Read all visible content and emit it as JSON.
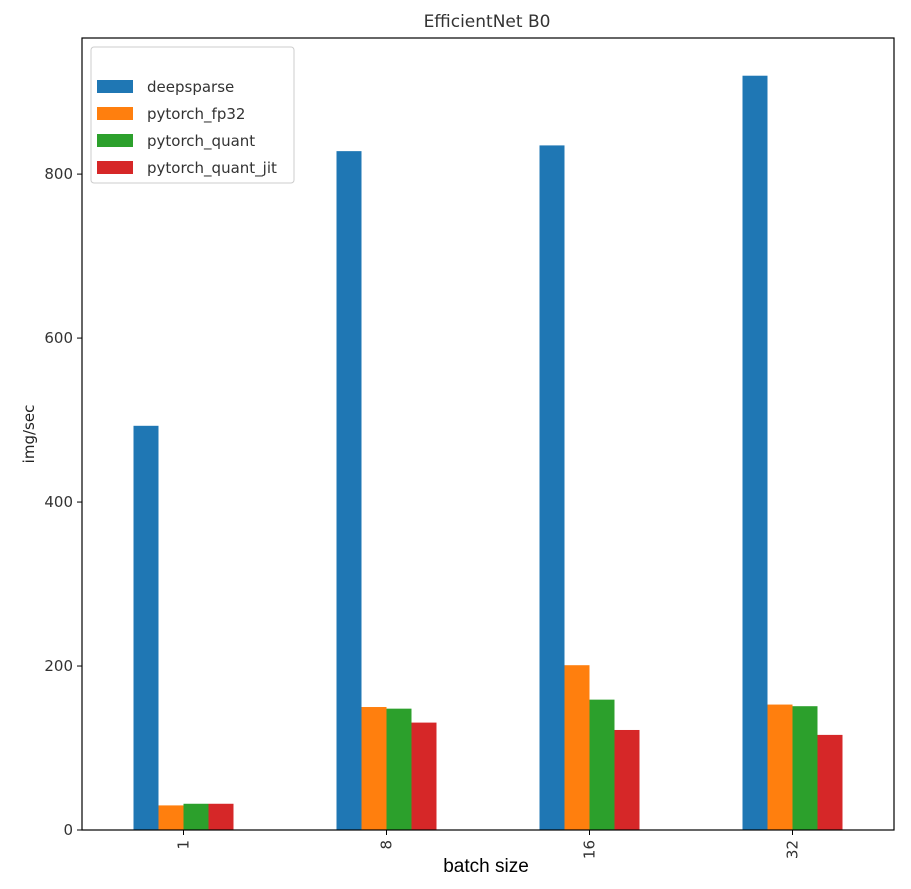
{
  "chart_data": {
    "type": "bar",
    "title": "EfficientNet B0",
    "xlabel": "batch size",
    "ylabel": "img/sec",
    "categories": [
      "1",
      "8",
      "16",
      "32"
    ],
    "series": [
      {
        "name": "deepsparse",
        "color": "#1f77b4",
        "values": [
          493,
          828,
          835,
          920
        ]
      },
      {
        "name": "pytorch_fp32",
        "color": "#ff7f0e",
        "values": [
          30,
          150,
          201,
          153
        ]
      },
      {
        "name": "pytorch_quant",
        "color": "#2ca02c",
        "values": [
          32,
          148,
          159,
          151
        ]
      },
      {
        "name": "pytorch_quant_jit",
        "color": "#d62728",
        "values": [
          32,
          131,
          122,
          116
        ]
      }
    ],
    "ylim": [
      0,
      966
    ],
    "yticks": [
      0,
      200,
      400,
      600,
      800
    ],
    "grid": false,
    "legend_position": "top-left"
  }
}
